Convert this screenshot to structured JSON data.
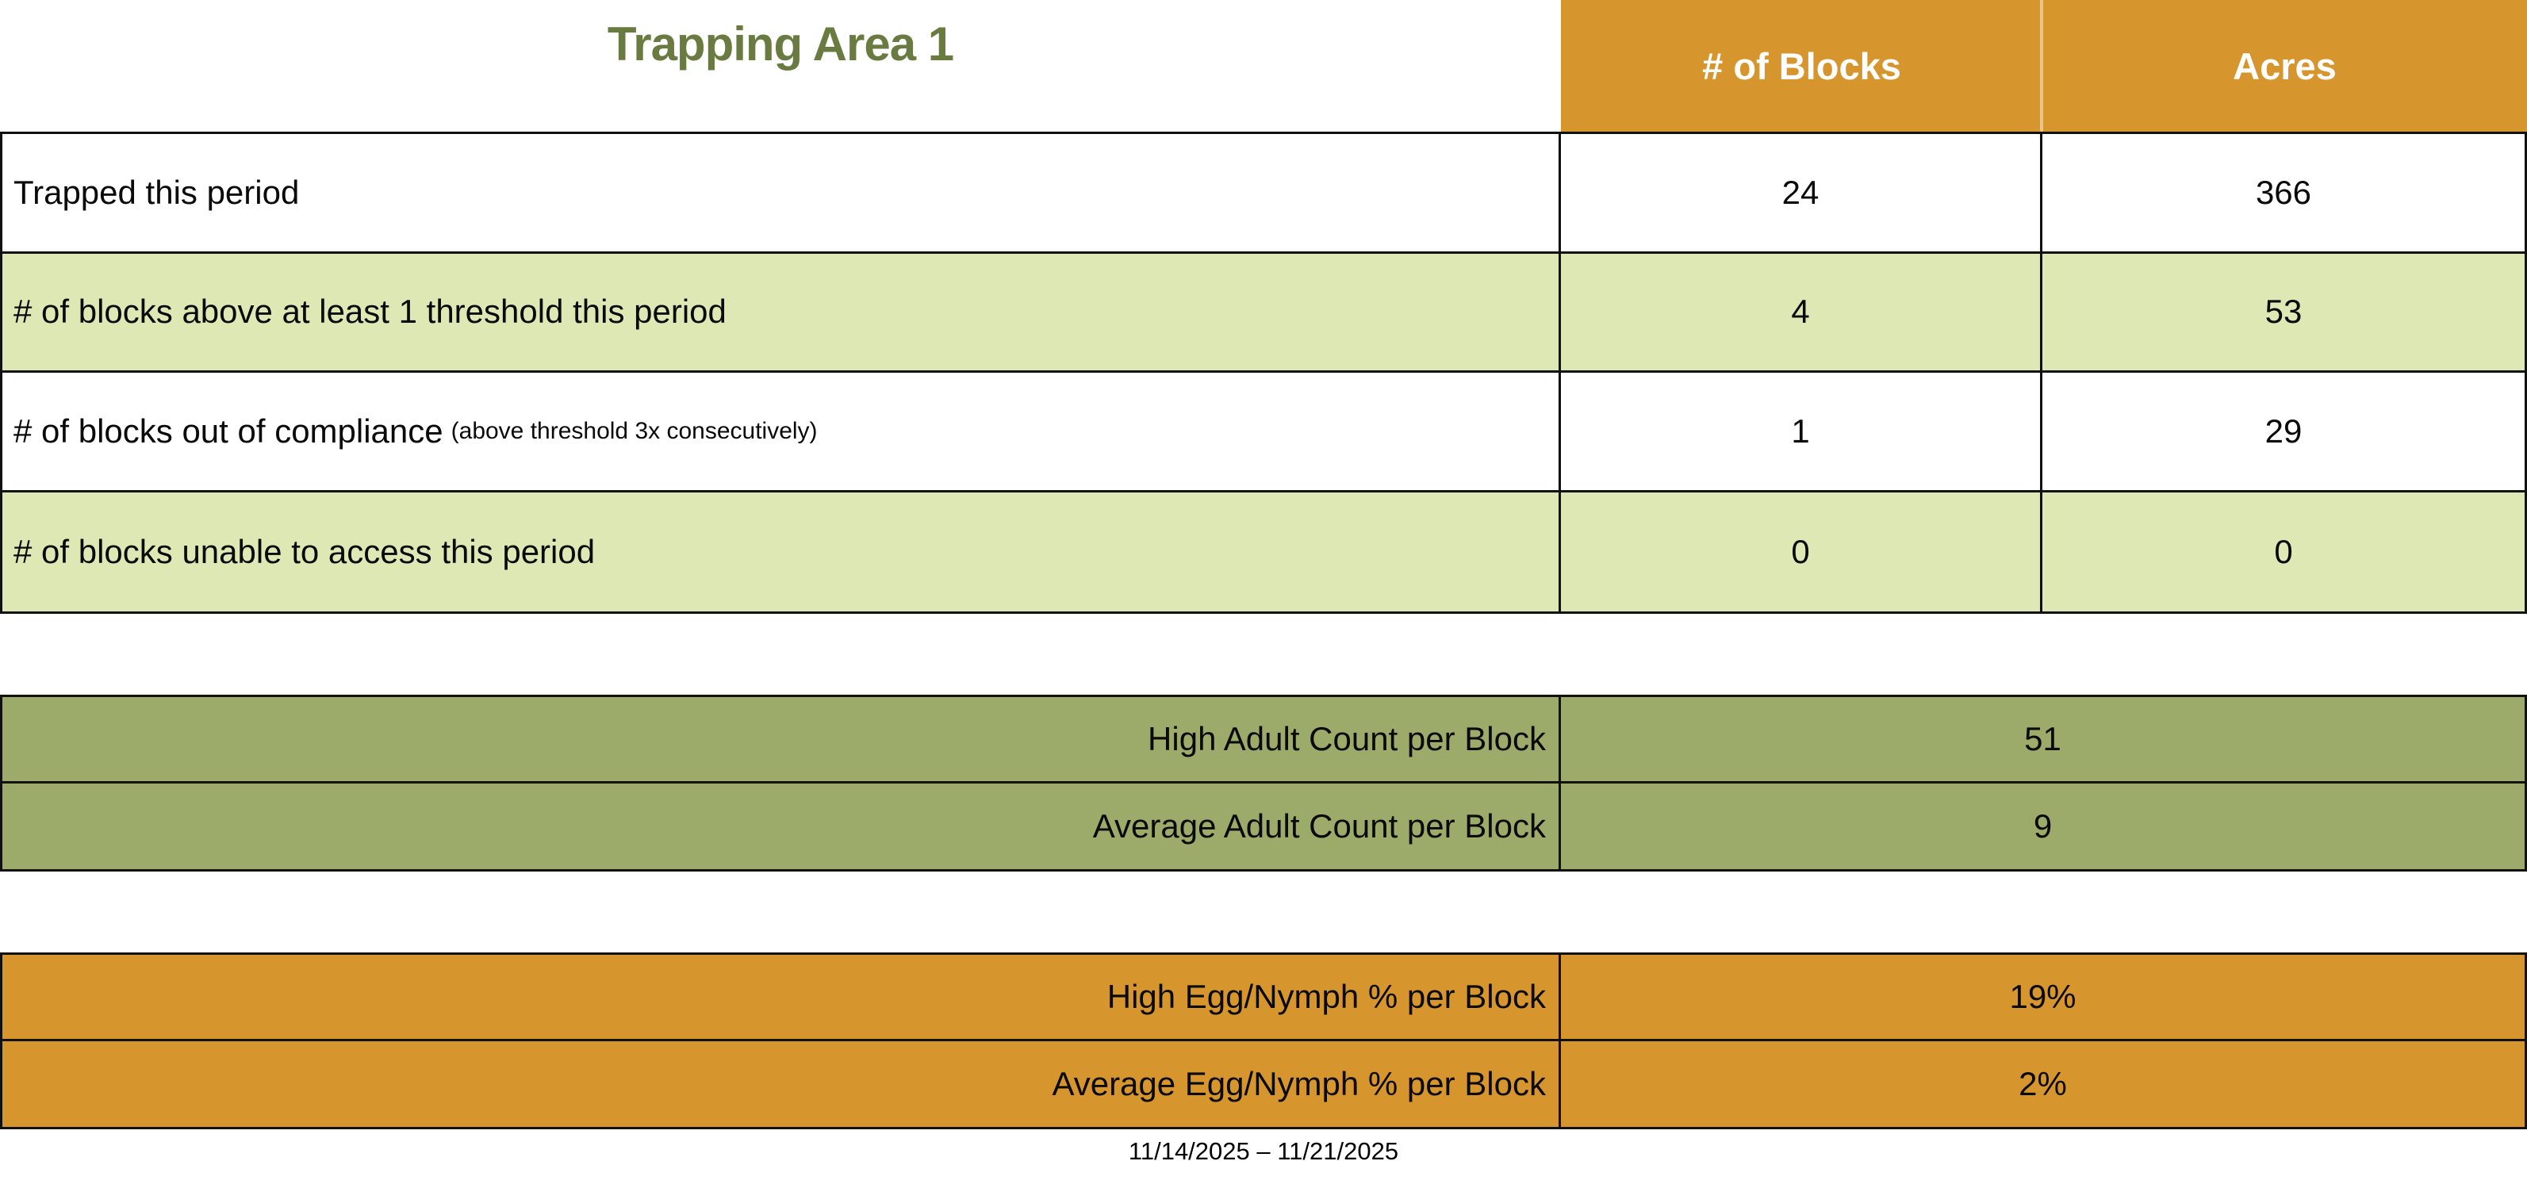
{
  "title": "Trapping Area 1",
  "colors": {
    "accent_orange": "#d6952d",
    "row_light_green": "#dee8b5",
    "table_olive_green": "#9cab6a",
    "title_green": "#6a7b42",
    "header_text": "#ffffff",
    "body_text": "#0a0a0a",
    "border": "#111111"
  },
  "main_table": {
    "columns": {
      "blocks": "# of Blocks",
      "acres": "Acres"
    },
    "rows": [
      {
        "label": "Trapped this period",
        "note": "",
        "blocks": "24",
        "acres": "366"
      },
      {
        "label": "# of blocks above at least 1 threshold this period",
        "note": "",
        "blocks": "4",
        "acres": "53"
      },
      {
        "label": "# of blocks out of compliance",
        "note": "(above threshold 3x consecutively)",
        "blocks": "1",
        "acres": "29"
      },
      {
        "label": "# of blocks unable to access this period",
        "note": "",
        "blocks": "0",
        "acres": "0"
      }
    ]
  },
  "adult_table": {
    "rows": [
      {
        "label": "High Adult Count per Block",
        "value": "51"
      },
      {
        "label": "Average Adult Count per Block",
        "value": "9"
      }
    ]
  },
  "egg_table": {
    "rows": [
      {
        "label": "High Egg/Nymph % per Block",
        "value": "19%"
      },
      {
        "label": "Average Egg/Nymph % per Block",
        "value": "2%"
      }
    ]
  },
  "footer": {
    "date_range": "11/14/2025 – 11/21/2025"
  }
}
